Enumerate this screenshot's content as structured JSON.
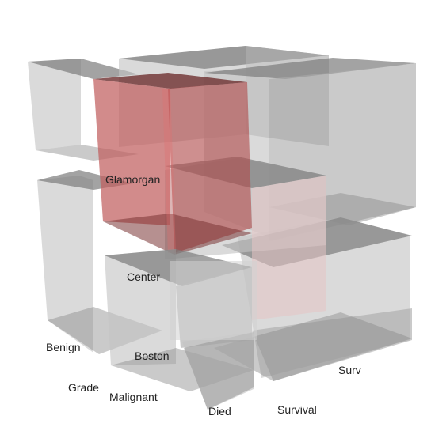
{
  "labels": {
    "glamorgan": "Glamorgan",
    "center": "Center",
    "benign": "Benign",
    "boston": "Boston",
    "grade": "Grade",
    "malignant": "Malignant",
    "died": "Died",
    "survival": "Survival",
    "surv": "Surv"
  },
  "colors": {
    "background": "#ffffff",
    "box_front": "#c8c8c8",
    "box_side": "#b4b4b4",
    "box_top": "#8e8e8e",
    "highlight_front": "#c66e6e",
    "highlight_top": "#7a3b3b",
    "text": "#222222"
  }
}
